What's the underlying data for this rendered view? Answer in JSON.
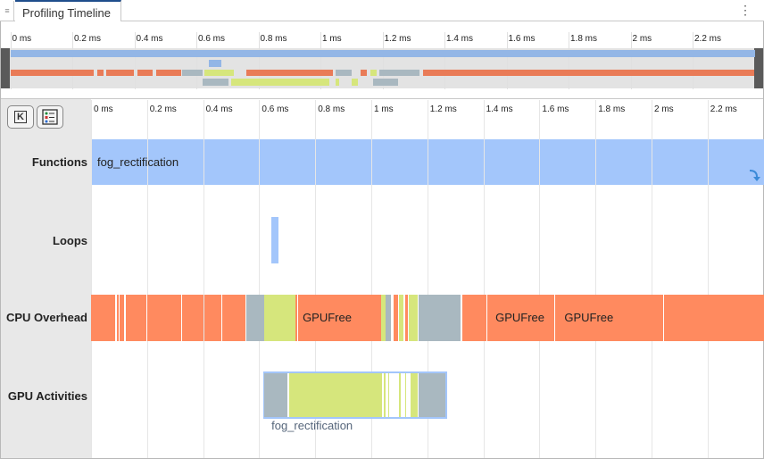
{
  "tab": {
    "title": "Profiling Timeline",
    "grip_icon": "drag-grip-icon",
    "menu_icon": "kebab-menu-icon"
  },
  "ticks": [
    "0 ms",
    "0.2 ms",
    "0.4 ms",
    "0.6 ms",
    "0.8 ms",
    "1 ms",
    "1.2 ms",
    "1.4 ms",
    "1.6 ms",
    "1.8 ms",
    "2 ms",
    "2.2 ms"
  ],
  "buttons": {
    "keyboard_icon": "K",
    "legend_icon": "legend-list-icon"
  },
  "rows": {
    "functions": "Functions",
    "loops": "Loops",
    "cpu": "CPU Overhead",
    "gpu": "GPU Activities"
  },
  "colors": {
    "function": "#a3c6fb",
    "loop": "#a3c6fb",
    "cpu": "#ff8a5f",
    "overview_cpu": "#e97b57",
    "idle": "#a9b8c0",
    "gpu": "#d6e67c",
    "overview_function": "#93b6e6"
  },
  "functions": {
    "label": "fog_rectification",
    "start": 0,
    "end": 2.4
  },
  "loops": [
    {
      "start": 0.642,
      "end": 0.67
    }
  ],
  "cpu": {
    "segments": [
      [
        0,
        0.087,
        "cpu"
      ],
      [
        0.093,
        0.098,
        "cpu"
      ],
      [
        0.103,
        0.117,
        "cpu"
      ],
      [
        0.123,
        0.197,
        "cpu"
      ],
      [
        0.2,
        0.322,
        "cpu"
      ],
      [
        0.325,
        0.4,
        "cpu"
      ],
      [
        0.403,
        0.465,
        "cpu"
      ],
      [
        0.468,
        0.54,
        "cpu"
      ],
      [
        0.54,
        0.552,
        "cpu"
      ],
      [
        0.555,
        0.617,
        "idle"
      ],
      [
        0.617,
        0.73,
        "gpu"
      ],
      [
        0.73,
        0.735,
        "cpu"
      ],
      [
        0.74,
        1.035,
        "cpu"
      ],
      [
        1.035,
        1.05,
        "gpu"
      ],
      [
        1.05,
        1.07,
        "idle"
      ],
      [
        1.08,
        1.095,
        "cpu"
      ],
      [
        1.1,
        1.115,
        "gpu"
      ],
      [
        1.12,
        1.13,
        "cpu"
      ],
      [
        1.135,
        1.165,
        "gpu"
      ],
      [
        1.17,
        1.32,
        "idle"
      ],
      [
        1.325,
        1.41,
        "cpu"
      ],
      [
        1.413,
        1.654,
        "cpu"
      ],
      [
        1.657,
        1.9,
        "cpu"
      ],
      [
        1.9,
        1.96,
        "cpu"
      ],
      [
        1.96,
        2.04,
        "cpu"
      ],
      [
        2.043,
        2.4,
        "cpu"
      ]
    ],
    "labels": [
      {
        "text": "GPUFree",
        "at": 0.755
      },
      {
        "text": "GPUFree",
        "at": 1.443
      },
      {
        "text": "GPUFree",
        "at": 1.689
      }
    ]
  },
  "gpu": {
    "label": "fog_rectification",
    "start": 0.615,
    "end": 1.27,
    "segments": [
      [
        0.618,
        0.7,
        "idle"
      ],
      [
        0.708,
        1.038,
        "gpu"
      ],
      [
        1.045,
        1.05,
        "gpu"
      ],
      [
        1.06,
        1.065,
        "gpu"
      ],
      [
        1.1,
        1.105,
        "gpu"
      ],
      [
        1.12,
        1.125,
        "gpu"
      ],
      [
        1.14,
        1.165,
        "gpu"
      ],
      [
        1.17,
        1.265,
        "idle"
      ]
    ]
  },
  "overview": {
    "cpu": [
      [
        0,
        0.27,
        "cpu"
      ],
      [
        0.28,
        0.3,
        "cpu"
      ],
      [
        0.31,
        0.4,
        "cpu"
      ],
      [
        0.41,
        0.46,
        "cpu"
      ],
      [
        0.47,
        0.55,
        "cpu"
      ],
      [
        0.555,
        0.62,
        "idle"
      ],
      [
        0.625,
        0.72,
        "gpu"
      ],
      [
        0.76,
        1.04,
        "cpu"
      ],
      [
        1.05,
        1.1,
        "idle"
      ],
      [
        1.13,
        1.15,
        "cpu"
      ],
      [
        1.16,
        1.18,
        "gpu"
      ],
      [
        1.19,
        1.32,
        "idle"
      ],
      [
        1.33,
        2.4,
        "cpu"
      ]
    ],
    "gpu": [
      [
        0.62,
        0.705,
        "idle"
      ],
      [
        0.712,
        1.03,
        "gpu"
      ],
      [
        1.05,
        1.06,
        "gpu"
      ],
      [
        1.1,
        1.12,
        "gpu"
      ],
      [
        1.17,
        1.25,
        "idle"
      ]
    ],
    "loops": [
      [
        0.64,
        0.68
      ]
    ]
  }
}
